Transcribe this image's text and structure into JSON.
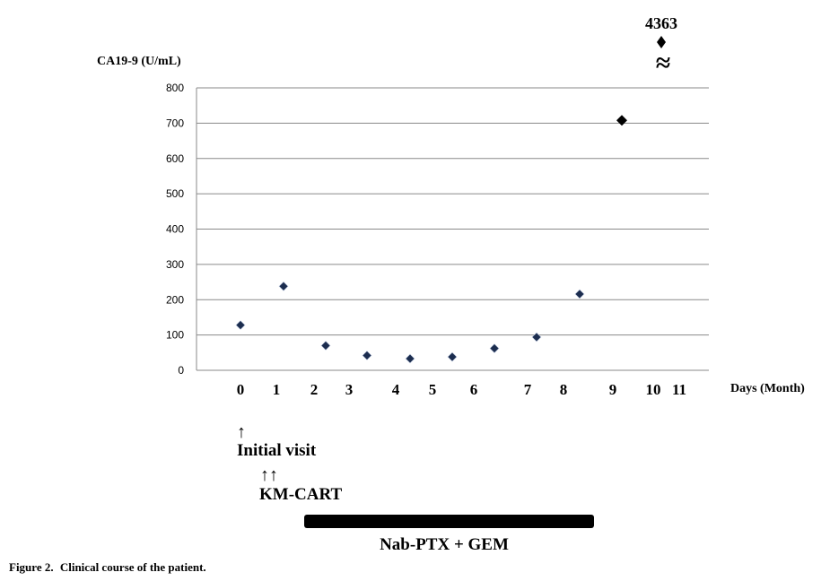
{
  "chart_data": {
    "type": "scatter",
    "ylabel": "CA19-9 (U/mL)",
    "xlabel": "Days (Month)",
    "ylim": [
      0,
      800
    ],
    "yticks": [
      0,
      100,
      200,
      300,
      400,
      500,
      600,
      700,
      800
    ],
    "grid": true,
    "x_tick_labels": [
      "0",
      "1",
      "2",
      "3",
      "4",
      "5",
      "6",
      "7",
      "8",
      "9",
      "10",
      "11"
    ],
    "points": [
      {
        "x": 0,
        "y": 128
      },
      {
        "x": 1,
        "y": 238
      },
      {
        "x": 2.3,
        "y": 70
      },
      {
        "x": 3.4,
        "y": 42
      },
      {
        "x": 4.5,
        "y": 33
      },
      {
        "x": 5.6,
        "y": 38
      },
      {
        "x": 6.6,
        "y": 62
      },
      {
        "x": 7.6,
        "y": 94
      },
      {
        "x": 8.6,
        "y": 216
      },
      {
        "x": 9.6,
        "y": 708
      }
    ],
    "outlier": {
      "x": 10.5,
      "value": 4363,
      "label": "4363",
      "break_symbol": "≈"
    },
    "marker_colors": {
      "normal": "#1c2d4f",
      "high": "#000000"
    }
  },
  "annotations": {
    "initial_visit": {
      "arrow": "↑",
      "label": "Initial visit"
    },
    "km_cart": {
      "arrow": "↑↑",
      "label": "KM-CART"
    },
    "treatment": {
      "label": "Nab-PTX + GEM",
      "color": "#000000"
    }
  },
  "caption": {
    "prefix": "Figure 2.",
    "text": "Clinical course of the patient."
  }
}
